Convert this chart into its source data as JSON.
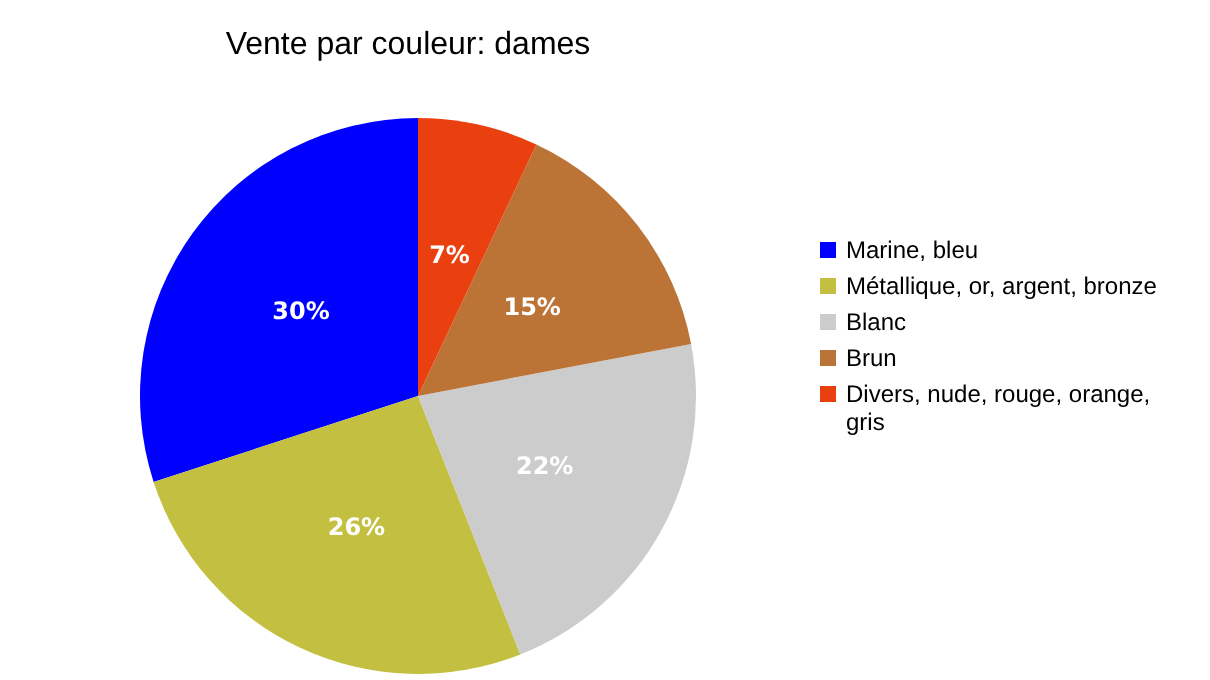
{
  "chart_data": {
    "type": "pie",
    "title": "Vente par couleur: dames",
    "categories": [
      "Marine, bleu",
      "Métallique, or, argent, bronze",
      "Blanc",
      "Brun",
      "Divers, nude, rouge, orange, gris"
    ],
    "values": [
      30,
      26,
      22,
      15,
      7
    ],
    "colors": [
      "#0000ff",
      "#c3bf41",
      "#cccccc",
      "#bb7436",
      "#ea400f"
    ],
    "value_labels": [
      "30%",
      "26%",
      "22%",
      "15%",
      "7%"
    ],
    "legend": "right"
  }
}
